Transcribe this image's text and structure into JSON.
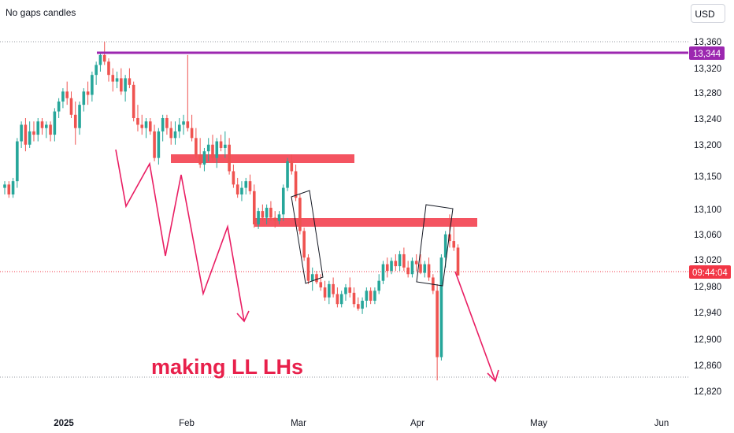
{
  "header": {
    "gaps_label": "No gaps candles",
    "currency": "USD"
  },
  "colors": {
    "up": "#26a69a",
    "down": "#ef5350",
    "level": "#9c27b0",
    "zone": "#f23645",
    "arrow": "#e91e63",
    "price_line": "#f23645"
  },
  "badges": {
    "level_value": "13,344",
    "countdown": "09:44:04"
  },
  "chart_data": {
    "type": "candlestick",
    "title": "",
    "xlabel": "",
    "ylabel": "",
    "y_ticks": [
      "13,360",
      "13,320",
      "13,280",
      "13,240",
      "13,200",
      "13,150",
      "13,100",
      "13,060",
      "13,020",
      "12,980",
      "12,940",
      "12,900",
      "12,860",
      "12,820"
    ],
    "x_ticks": [
      {
        "label": "2025",
        "bold": true
      },
      {
        "label": "Feb",
        "bold": false
      },
      {
        "label": "Mar",
        "bold": false
      },
      {
        "label": "Apr",
        "bold": false
      },
      {
        "label": "May",
        "bold": false
      },
      {
        "label": "Jun",
        "bold": false
      }
    ],
    "horizontal_level": 13344,
    "current_price": 13008,
    "dotted_lines": [
      13360,
      12855
    ],
    "zones": [
      {
        "from_bar": 40,
        "to_bar": 87,
        "low": 13168,
        "high": 13178
      },
      {
        "from_bar": 60,
        "to_bar": 117,
        "low": 13078,
        "high": 13088
      }
    ],
    "annotation": "making LL LHs",
    "candles": [
      [
        13140,
        13150,
        13130,
        13145
      ],
      [
        13145,
        13150,
        13125,
        13130
      ],
      [
        13130,
        13155,
        13125,
        13150
      ],
      [
        13150,
        13215,
        13140,
        13210
      ],
      [
        13210,
        13240,
        13200,
        13235
      ],
      [
        13235,
        13245,
        13195,
        13205
      ],
      [
        13205,
        13240,
        13200,
        13225
      ],
      [
        13225,
        13240,
        13210,
        13220
      ],
      [
        13220,
        13245,
        13210,
        13240
      ],
      [
        13240,
        13245,
        13220,
        13230
      ],
      [
        13230,
        13240,
        13215,
        13235
      ],
      [
        13235,
        13240,
        13210,
        13220
      ],
      [
        13220,
        13260,
        13210,
        13255
      ],
      [
        13255,
        13275,
        13245,
        13270
      ],
      [
        13270,
        13290,
        13260,
        13285
      ],
      [
        13285,
        13300,
        13265,
        13275
      ],
      [
        13275,
        13285,
        13245,
        13250
      ],
      [
        13250,
        13270,
        13205,
        13230
      ],
      [
        13230,
        13270,
        13220,
        13265
      ],
      [
        13265,
        13290,
        13255,
        13285
      ],
      [
        13285,
        13300,
        13265,
        13280
      ],
      [
        13280,
        13315,
        13270,
        13310
      ],
      [
        13310,
        13330,
        13295,
        13325
      ],
      [
        13325,
        13345,
        13315,
        13340
      ],
      [
        13340,
        13360,
        13325,
        13330
      ],
      [
        13330,
        13335,
        13300,
        13310
      ],
      [
        13310,
        13320,
        13285,
        13300
      ],
      [
        13300,
        13315,
        13290,
        13305
      ],
      [
        13305,
        13320,
        13280,
        13285
      ],
      [
        13285,
        13310,
        13270,
        13305
      ],
      [
        13305,
        13320,
        13290,
        13295
      ],
      [
        13295,
        13300,
        13240,
        13245
      ],
      [
        13245,
        13265,
        13225,
        13235
      ],
      [
        13235,
        13250,
        13220,
        13230
      ],
      [
        13230,
        13245,
        13215,
        13240
      ],
      [
        13240,
        13245,
        13220,
        13225
      ],
      [
        13225,
        13235,
        13180,
        13185
      ],
      [
        13185,
        13230,
        13175,
        13225
      ],
      [
        13225,
        13250,
        13210,
        13245
      ],
      [
        13245,
        13250,
        13220,
        13230
      ],
      [
        13230,
        13240,
        13205,
        13215
      ],
      [
        13215,
        13240,
        13205,
        13225
      ],
      [
        13225,
        13245,
        13215,
        13235
      ],
      [
        13235,
        13250,
        13220,
        13240
      ],
      [
        13240,
        13340,
        13225,
        13230
      ],
      [
        13230,
        13250,
        13210,
        13215
      ],
      [
        13215,
        13230,
        13185,
        13190
      ],
      [
        13190,
        13215,
        13170,
        13175
      ],
      [
        13175,
        13200,
        13165,
        13195
      ],
      [
        13195,
        13215,
        13180,
        13205
      ],
      [
        13205,
        13220,
        13180,
        13185
      ],
      [
        13185,
        13215,
        13170,
        13210
      ],
      [
        13210,
        13220,
        13195,
        13200
      ],
      [
        13200,
        13225,
        13185,
        13205
      ],
      [
        13205,
        13215,
        13160,
        13165
      ],
      [
        13165,
        13175,
        13140,
        13145
      ],
      [
        13145,
        13155,
        13125,
        13130
      ],
      [
        13130,
        13150,
        13120,
        13140
      ],
      [
        13140,
        13155,
        13130,
        13150
      ],
      [
        13150,
        13160,
        13130,
        13135
      ],
      [
        13135,
        13145,
        13080,
        13085
      ],
      [
        13085,
        13110,
        13078,
        13105
      ],
      [
        13105,
        13115,
        13090,
        13095
      ],
      [
        13095,
        13115,
        13085,
        13110
      ],
      [
        13110,
        13120,
        13090,
        13095
      ],
      [
        13095,
        13105,
        13080,
        13090
      ],
      [
        13090,
        13105,
        13085,
        13100
      ],
      [
        13100,
        13145,
        13090,
        13140
      ],
      [
        13140,
        13185,
        13135,
        13180
      ],
      [
        13180,
        13190,
        13160,
        13165
      ],
      [
        13165,
        13175,
        13120,
        13125
      ],
      [
        13125,
        13130,
        13070,
        13075
      ],
      [
        13075,
        13080,
        13030,
        13035
      ],
      [
        13035,
        13040,
        12995,
        13000
      ],
      [
        13000,
        13020,
        12985,
        13010
      ],
      [
        13010,
        13015,
        12995,
        12998
      ],
      [
        12998,
        13010,
        12985,
        12990
      ],
      [
        12990,
        13000,
        12970,
        12975
      ],
      [
        12975,
        13000,
        12965,
        12995
      ],
      [
        12995,
        13005,
        12975,
        12980
      ],
      [
        12980,
        12990,
        12960,
        12965
      ],
      [
        12965,
        12985,
        12960,
        12980
      ],
      [
        12980,
        12995,
        12970,
        12990
      ],
      [
        12990,
        13005,
        12975,
        12982
      ],
      [
        12982,
        12990,
        12960,
        12965
      ],
      [
        12965,
        12975,
        12955,
        12958
      ],
      [
        12958,
        12975,
        12950,
        12970
      ],
      [
        12970,
        12990,
        12960,
        12985
      ],
      [
        12985,
        12990,
        12965,
        12970
      ],
      [
        12970,
        12990,
        12965,
        12985
      ],
      [
        12985,
        13010,
        12980,
        13000
      ],
      [
        13000,
        13030,
        12995,
        13025
      ],
      [
        13025,
        13035,
        13005,
        13015
      ],
      [
        13015,
        13035,
        13010,
        13030
      ],
      [
        13030,
        13040,
        13015,
        13022
      ],
      [
        13022,
        13045,
        13015,
        13040
      ],
      [
        13040,
        13050,
        13015,
        13020
      ],
      [
        13020,
        13030,
        13005,
        13010
      ],
      [
        13010,
        13035,
        13005,
        13030
      ],
      [
        13030,
        13040,
        13015,
        13025
      ],
      [
        13025,
        13040,
        13010,
        13012
      ],
      [
        13012,
        13030,
        13005,
        13025
      ],
      [
        13025,
        13035,
        13000,
        13005
      ],
      [
        13005,
        13010,
        12980,
        12985
      ],
      [
        12985,
        12995,
        12850,
        12885
      ],
      [
        12885,
        13040,
        12880,
        13035
      ],
      [
        13035,
        13075,
        13020,
        13070
      ],
      [
        13070,
        13100,
        13050,
        13060
      ],
      [
        13060,
        13085,
        13045,
        13050
      ],
      [
        13050,
        13055,
        13010,
        13008
      ]
    ]
  }
}
